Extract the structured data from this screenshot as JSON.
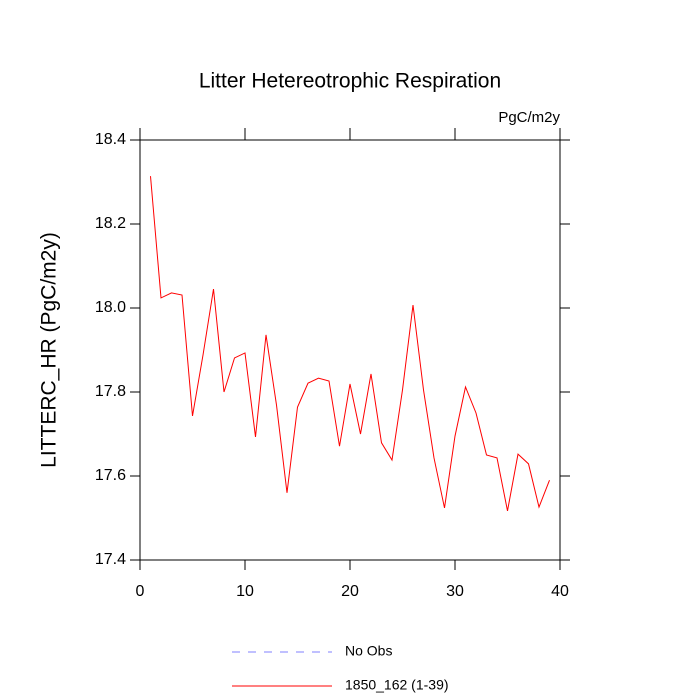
{
  "chart_data": {
    "type": "line",
    "title": "Litter Hetereotrophic Respiration",
    "units": "PgC/m2y",
    "y_label": "LITTERC_HR  (PgC/m2y)",
    "x": [
      1,
      2,
      3,
      4,
      5,
      6,
      7,
      8,
      9,
      10,
      11,
      12,
      13,
      14,
      15,
      16,
      17,
      18,
      19,
      20,
      21,
      22,
      23,
      24,
      25,
      26,
      27,
      28,
      29,
      30,
      31,
      32,
      33,
      34,
      35,
      36,
      37,
      38,
      39
    ],
    "series": [
      {
        "name": "1850_162 (1-39)",
        "color": "#ff0000",
        "values": [
          18.314,
          18.024,
          18.036,
          18.031,
          17.743,
          17.888,
          18.045,
          17.8,
          17.881,
          17.893,
          17.693,
          17.936,
          17.769,
          17.56,
          17.764,
          17.821,
          17.833,
          17.826,
          17.671,
          17.819,
          17.7,
          17.843,
          17.679,
          17.638,
          17.805,
          18.007,
          17.805,
          17.643,
          17.524,
          17.695,
          17.812,
          17.75,
          17.65,
          17.643,
          17.517,
          17.652,
          17.629,
          17.526,
          17.59
        ]
      }
    ],
    "reference": {
      "name": "No Obs",
      "color": "#8080ff",
      "dash": "8 8"
    },
    "xlim": [
      0,
      40
    ],
    "xticks": [
      0,
      10,
      20,
      30,
      40
    ],
    "ylim": [
      17.4,
      18.4
    ],
    "yticks": [
      17.4,
      17.6,
      17.8,
      {
        "value": 18,
        "label": "18.0"
      },
      18.2,
      18.4
    ]
  }
}
